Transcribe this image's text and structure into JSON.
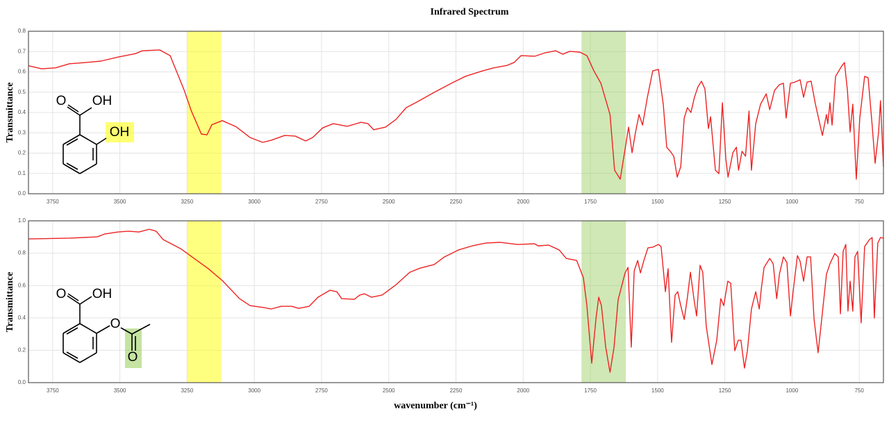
{
  "chart_data": [
    {
      "type": "line",
      "title": "Infrared Spectrum",
      "ylabel": "Transmittance",
      "structure_labels": [
        "O",
        "OH",
        "OH"
      ],
      "xlim": [
        3840,
        660
      ],
      "ylim": [
        0,
        0.8
      ],
      "xticks": [
        3750,
        3500,
        3250,
        3000,
        2750,
        2500,
        2250,
        2000,
        1750,
        1500,
        1250,
        1000,
        750
      ],
      "yticks": [
        {
          "value": 0,
          "label": "0.0"
        },
        0.1,
        0.2,
        0.3,
        0.4,
        0.5,
        0.6,
        0.7,
        0.8
      ],
      "grid": true,
      "highlights": [
        {
          "from": 3250,
          "to": 3123,
          "color": "rgba(255,255,0,0.5)"
        },
        {
          "from": 1783,
          "to": 1618,
          "color": "rgba(150,205,90,0.45)"
        }
      ],
      "x": [
        3840,
        3791,
        3739,
        3688,
        3636,
        3571,
        3507,
        3442,
        3416,
        3352,
        3313,
        3261,
        3235,
        3197,
        3176,
        3158,
        3119,
        3068,
        3016,
        2969,
        2938,
        2887,
        2848,
        2809,
        2783,
        2745,
        2706,
        2654,
        2603,
        2577,
        2556,
        2512,
        2473,
        2435,
        2396,
        2331,
        2267,
        2215,
        2151,
        2112,
        2060,
        2034,
        2008,
        1957,
        1918,
        1879,
        1853,
        1827,
        1789,
        1763,
        1737,
        1711,
        1677,
        1660,
        1639,
        1621,
        1608,
        1595,
        1582,
        1569,
        1556,
        1538,
        1518,
        1497,
        1479,
        1466,
        1453,
        1440,
        1427,
        1414,
        1401,
        1389,
        1376,
        1363,
        1350,
        1337,
        1324,
        1311,
        1303,
        1285,
        1272,
        1259,
        1246,
        1238,
        1220,
        1207,
        1199,
        1186,
        1173,
        1160,
        1151,
        1135,
        1117,
        1096,
        1083,
        1065,
        1047,
        1032,
        1022,
        1006,
        988,
        970,
        957,
        944,
        929,
        913,
        887,
        872,
        867,
        859,
        851,
        838,
        815,
        805,
        794,
        784,
        774,
        761,
        748,
        730,
        717,
        702,
        691,
        678,
        671,
        660
      ],
      "series": [
        {
          "color": "#ee2222",
          "values": [
            0.63,
            0.615,
            0.62,
            0.64,
            0.645,
            0.653,
            0.673,
            0.69,
            0.704,
            0.708,
            0.68,
            0.51,
            0.41,
            0.294,
            0.29,
            0.34,
            0.36,
            0.33,
            0.277,
            0.253,
            0.263,
            0.287,
            0.284,
            0.26,
            0.277,
            0.325,
            0.345,
            0.332,
            0.352,
            0.345,
            0.315,
            0.328,
            0.366,
            0.424,
            0.451,
            0.499,
            0.544,
            0.578,
            0.605,
            0.619,
            0.632,
            0.646,
            0.68,
            0.677,
            0.694,
            0.704,
            0.687,
            0.701,
            0.697,
            0.68,
            0.605,
            0.544,
            0.39,
            0.116,
            0.072,
            0.219,
            0.328,
            0.202,
            0.304,
            0.39,
            0.338,
            0.475,
            0.605,
            0.612,
            0.441,
            0.229,
            0.209,
            0.185,
            0.082,
            0.133,
            0.373,
            0.424,
            0.4,
            0.475,
            0.526,
            0.554,
            0.516,
            0.321,
            0.379,
            0.116,
            0.099,
            0.448,
            0.168,
            0.082,
            0.202,
            0.229,
            0.116,
            0.209,
            0.185,
            0.407,
            0.116,
            0.345,
            0.441,
            0.492,
            0.414,
            0.509,
            0.537,
            0.544,
            0.373,
            0.544,
            0.55,
            0.561,
            0.475,
            0.55,
            0.554,
            0.441,
            0.287,
            0.39,
            0.345,
            0.448,
            0.338,
            0.578,
            0.629,
            0.646,
            0.509,
            0.304,
            0.441,
            0.072,
            0.373,
            0.578,
            0.571,
            0.338,
            0.15,
            0.304,
            0.458,
            0.133
          ]
        }
      ]
    },
    {
      "type": "line",
      "ylabel": "Transmittance",
      "xlabel": "wavenumber (cm⁻¹)",
      "structure_labels": [
        "O",
        "OH",
        "O",
        "O"
      ],
      "xlim": [
        3840,
        660
      ],
      "ylim": [
        0,
        1
      ],
      "xticks": [
        3750,
        3500,
        3250,
        3000,
        2750,
        2500,
        2250,
        2000,
        1750,
        1500,
        1250,
        1000,
        750
      ],
      "yticks": [
        {
          "value": 0,
          "label": "0.0"
        },
        0.2,
        0.4,
        0.6,
        0.8,
        {
          "value": 1,
          "label": "1.0"
        }
      ],
      "grid": true,
      "highlights": [
        {
          "from": 3250,
          "to": 3123,
          "color": "rgba(255,255,0,0.5)"
        },
        {
          "from": 1783,
          "to": 1618,
          "color": "rgba(150,205,90,0.45)"
        }
      ],
      "x": [
        3840,
        3688,
        3584,
        3558,
        3507,
        3468,
        3429,
        3391,
        3365,
        3339,
        3274,
        3249,
        3171,
        3119,
        3055,
        3016,
        2964,
        2938,
        2900,
        2861,
        2835,
        2796,
        2763,
        2719,
        2693,
        2675,
        2628,
        2608,
        2590,
        2564,
        2525,
        2473,
        2422,
        2383,
        2331,
        2293,
        2241,
        2190,
        2138,
        2086,
        2021,
        1957,
        1944,
        1905,
        1866,
        1840,
        1801,
        1776,
        1763,
        1745,
        1729,
        1719,
        1709,
        1693,
        1677,
        1662,
        1647,
        1621,
        1610,
        1598,
        1587,
        1574,
        1564,
        1551,
        1536,
        1518,
        1497,
        1487,
        1471,
        1461,
        1448,
        1435,
        1425,
        1414,
        1401,
        1389,
        1378,
        1365,
        1355,
        1342,
        1332,
        1319,
        1298,
        1280,
        1265,
        1254,
        1239,
        1228,
        1213,
        1200,
        1190,
        1177,
        1166,
        1151,
        1135,
        1122,
        1114,
        1104,
        1083,
        1070,
        1057,
        1047,
        1032,
        1019,
        1006,
        993,
        980,
        970,
        957,
        944,
        931,
        918,
        903,
        887,
        872,
        859,
        841,
        828,
        820,
        810,
        800,
        792,
        784,
        774,
        766,
        756,
        743,
        730,
        712,
        702,
        694,
        681,
        671,
        660
      ],
      "series": [
        {
          "color": "#ee2222",
          "values": [
            0.888,
            0.893,
            0.901,
            0.918,
            0.931,
            0.936,
            0.931,
            0.948,
            0.936,
            0.884,
            0.828,
            0.798,
            0.704,
            0.631,
            0.519,
            0.476,
            0.464,
            0.455,
            0.472,
            0.472,
            0.459,
            0.472,
            0.528,
            0.571,
            0.562,
            0.519,
            0.515,
            0.541,
            0.549,
            0.528,
            0.541,
            0.605,
            0.682,
            0.708,
            0.73,
            0.777,
            0.82,
            0.845,
            0.863,
            0.867,
            0.854,
            0.858,
            0.845,
            0.85,
            0.82,
            0.768,
            0.755,
            0.648,
            0.476,
            0.12,
            0.399,
            0.528,
            0.476,
            0.219,
            0.064,
            0.219,
            0.511,
            0.678,
            0.712,
            0.219,
            0.691,
            0.755,
            0.678,
            0.755,
            0.833,
            0.837,
            0.854,
            0.841,
            0.562,
            0.704,
            0.249,
            0.541,
            0.562,
            0.476,
            0.39,
            0.528,
            0.682,
            0.519,
            0.412,
            0.725,
            0.682,
            0.348,
            0.112,
            0.262,
            0.519,
            0.476,
            0.627,
            0.614,
            0.197,
            0.262,
            0.262,
            0.09,
            0.197,
            0.455,
            0.562,
            0.455,
            0.584,
            0.712,
            0.768,
            0.734,
            0.519,
            0.67,
            0.777,
            0.742,
            0.412,
            0.605,
            0.785,
            0.75,
            0.627,
            0.777,
            0.777,
            0.39,
            0.185,
            0.433,
            0.67,
            0.734,
            0.798,
            0.777,
            0.425,
            0.811,
            0.854,
            0.442,
            0.627,
            0.442,
            0.777,
            0.811,
            0.369,
            0.841,
            0.884,
            0.897,
            0.399,
            0.863,
            0.897,
            0.893
          ]
        }
      ]
    }
  ]
}
